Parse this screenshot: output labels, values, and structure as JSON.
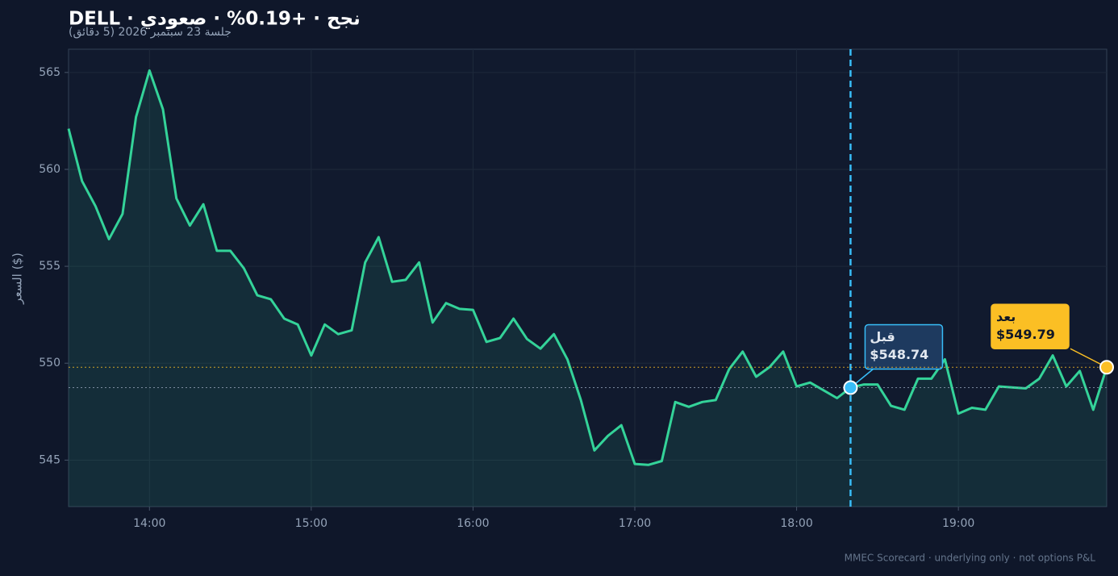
{
  "chart_data": {
    "type": "line",
    "title": "DELL · نجح · +0.19% · صعودي",
    "subtitle": "جلسة 23 سبتمبر 2026 (5 دقائق)",
    "y_label": "السعر ($)",
    "footer": "MMEC Scorecard · underlying only · not options P&L",
    "x": [
      "13:30",
      "13:35",
      "13:40",
      "13:45",
      "13:50",
      "13:55",
      "14:00",
      "14:05",
      "14:10",
      "14:15",
      "14:20",
      "14:25",
      "14:30",
      "14:35",
      "14:40",
      "14:45",
      "14:50",
      "14:55",
      "15:00",
      "15:05",
      "15:10",
      "15:15",
      "15:20",
      "15:25",
      "15:30",
      "15:35",
      "15:40",
      "15:45",
      "15:50",
      "15:55",
      "16:00",
      "16:05",
      "16:10",
      "16:15",
      "16:20",
      "16:25",
      "16:30",
      "16:35",
      "16:40",
      "16:45",
      "16:50",
      "16:55",
      "17:00",
      "17:05",
      "17:10",
      "17:15",
      "17:20",
      "17:25",
      "17:30",
      "17:35",
      "17:40",
      "17:45",
      "17:50",
      "17:55",
      "18:00",
      "18:05",
      "18:10",
      "18:15",
      "18:20",
      "18:25",
      "18:30",
      "18:35",
      "18:40",
      "18:45",
      "18:50",
      "18:55",
      "19:00",
      "19:05",
      "19:10",
      "19:15",
      "19:20",
      "19:25",
      "19:30",
      "19:35",
      "19:40",
      "19:45",
      "19:50",
      "19:55"
    ],
    "series": [
      {
        "name": "DELL",
        "color": "#34d399",
        "values": [
          562.1,
          559.4,
          558.1,
          556.4,
          557.7,
          562.7,
          565.1,
          563.1,
          558.5,
          557.1,
          558.2,
          555.8,
          555.8,
          554.9,
          553.5,
          553.3,
          552.3,
          552.0,
          550.4,
          552.0,
          551.5,
          551.7,
          555.2,
          556.5,
          554.2,
          554.3,
          555.2,
          552.1,
          553.1,
          552.8,
          552.75,
          551.1,
          551.3,
          552.3,
          551.25,
          550.75,
          551.5,
          550.2,
          548.1,
          545.5,
          546.25,
          546.8,
          544.8,
          544.75,
          544.95,
          548.0,
          547.75,
          548.0,
          548.1,
          549.7,
          550.6,
          549.3,
          549.8,
          550.6,
          548.8,
          549.0,
          548.6,
          548.2,
          548.74,
          548.9,
          548.9,
          547.8,
          547.6,
          549.2,
          549.2,
          550.2,
          547.4,
          547.7,
          547.6,
          548.8,
          548.75,
          548.7,
          549.2,
          550.4,
          548.8,
          549.6,
          547.6,
          549.79
        ]
      }
    ],
    "markers": [
      {
        "name": "قبل",
        "x": "18:20",
        "value": 548.74,
        "value_label": "$548.74",
        "color": "#38bdf8"
      },
      {
        "name": "بعد",
        "x": "19:55",
        "value": 549.79,
        "value_label": "$549.79",
        "color": "#fbbf24"
      }
    ],
    "xlim": [
      "13:30",
      "19:55"
    ],
    "xticks": [
      "14:00",
      "15:00",
      "16:00",
      "17:00",
      "18:00",
      "19:00"
    ],
    "ylim": [
      542.6,
      566.2
    ],
    "yticks": [
      545,
      550,
      555,
      560,
      565
    ],
    "grid": true
  }
}
